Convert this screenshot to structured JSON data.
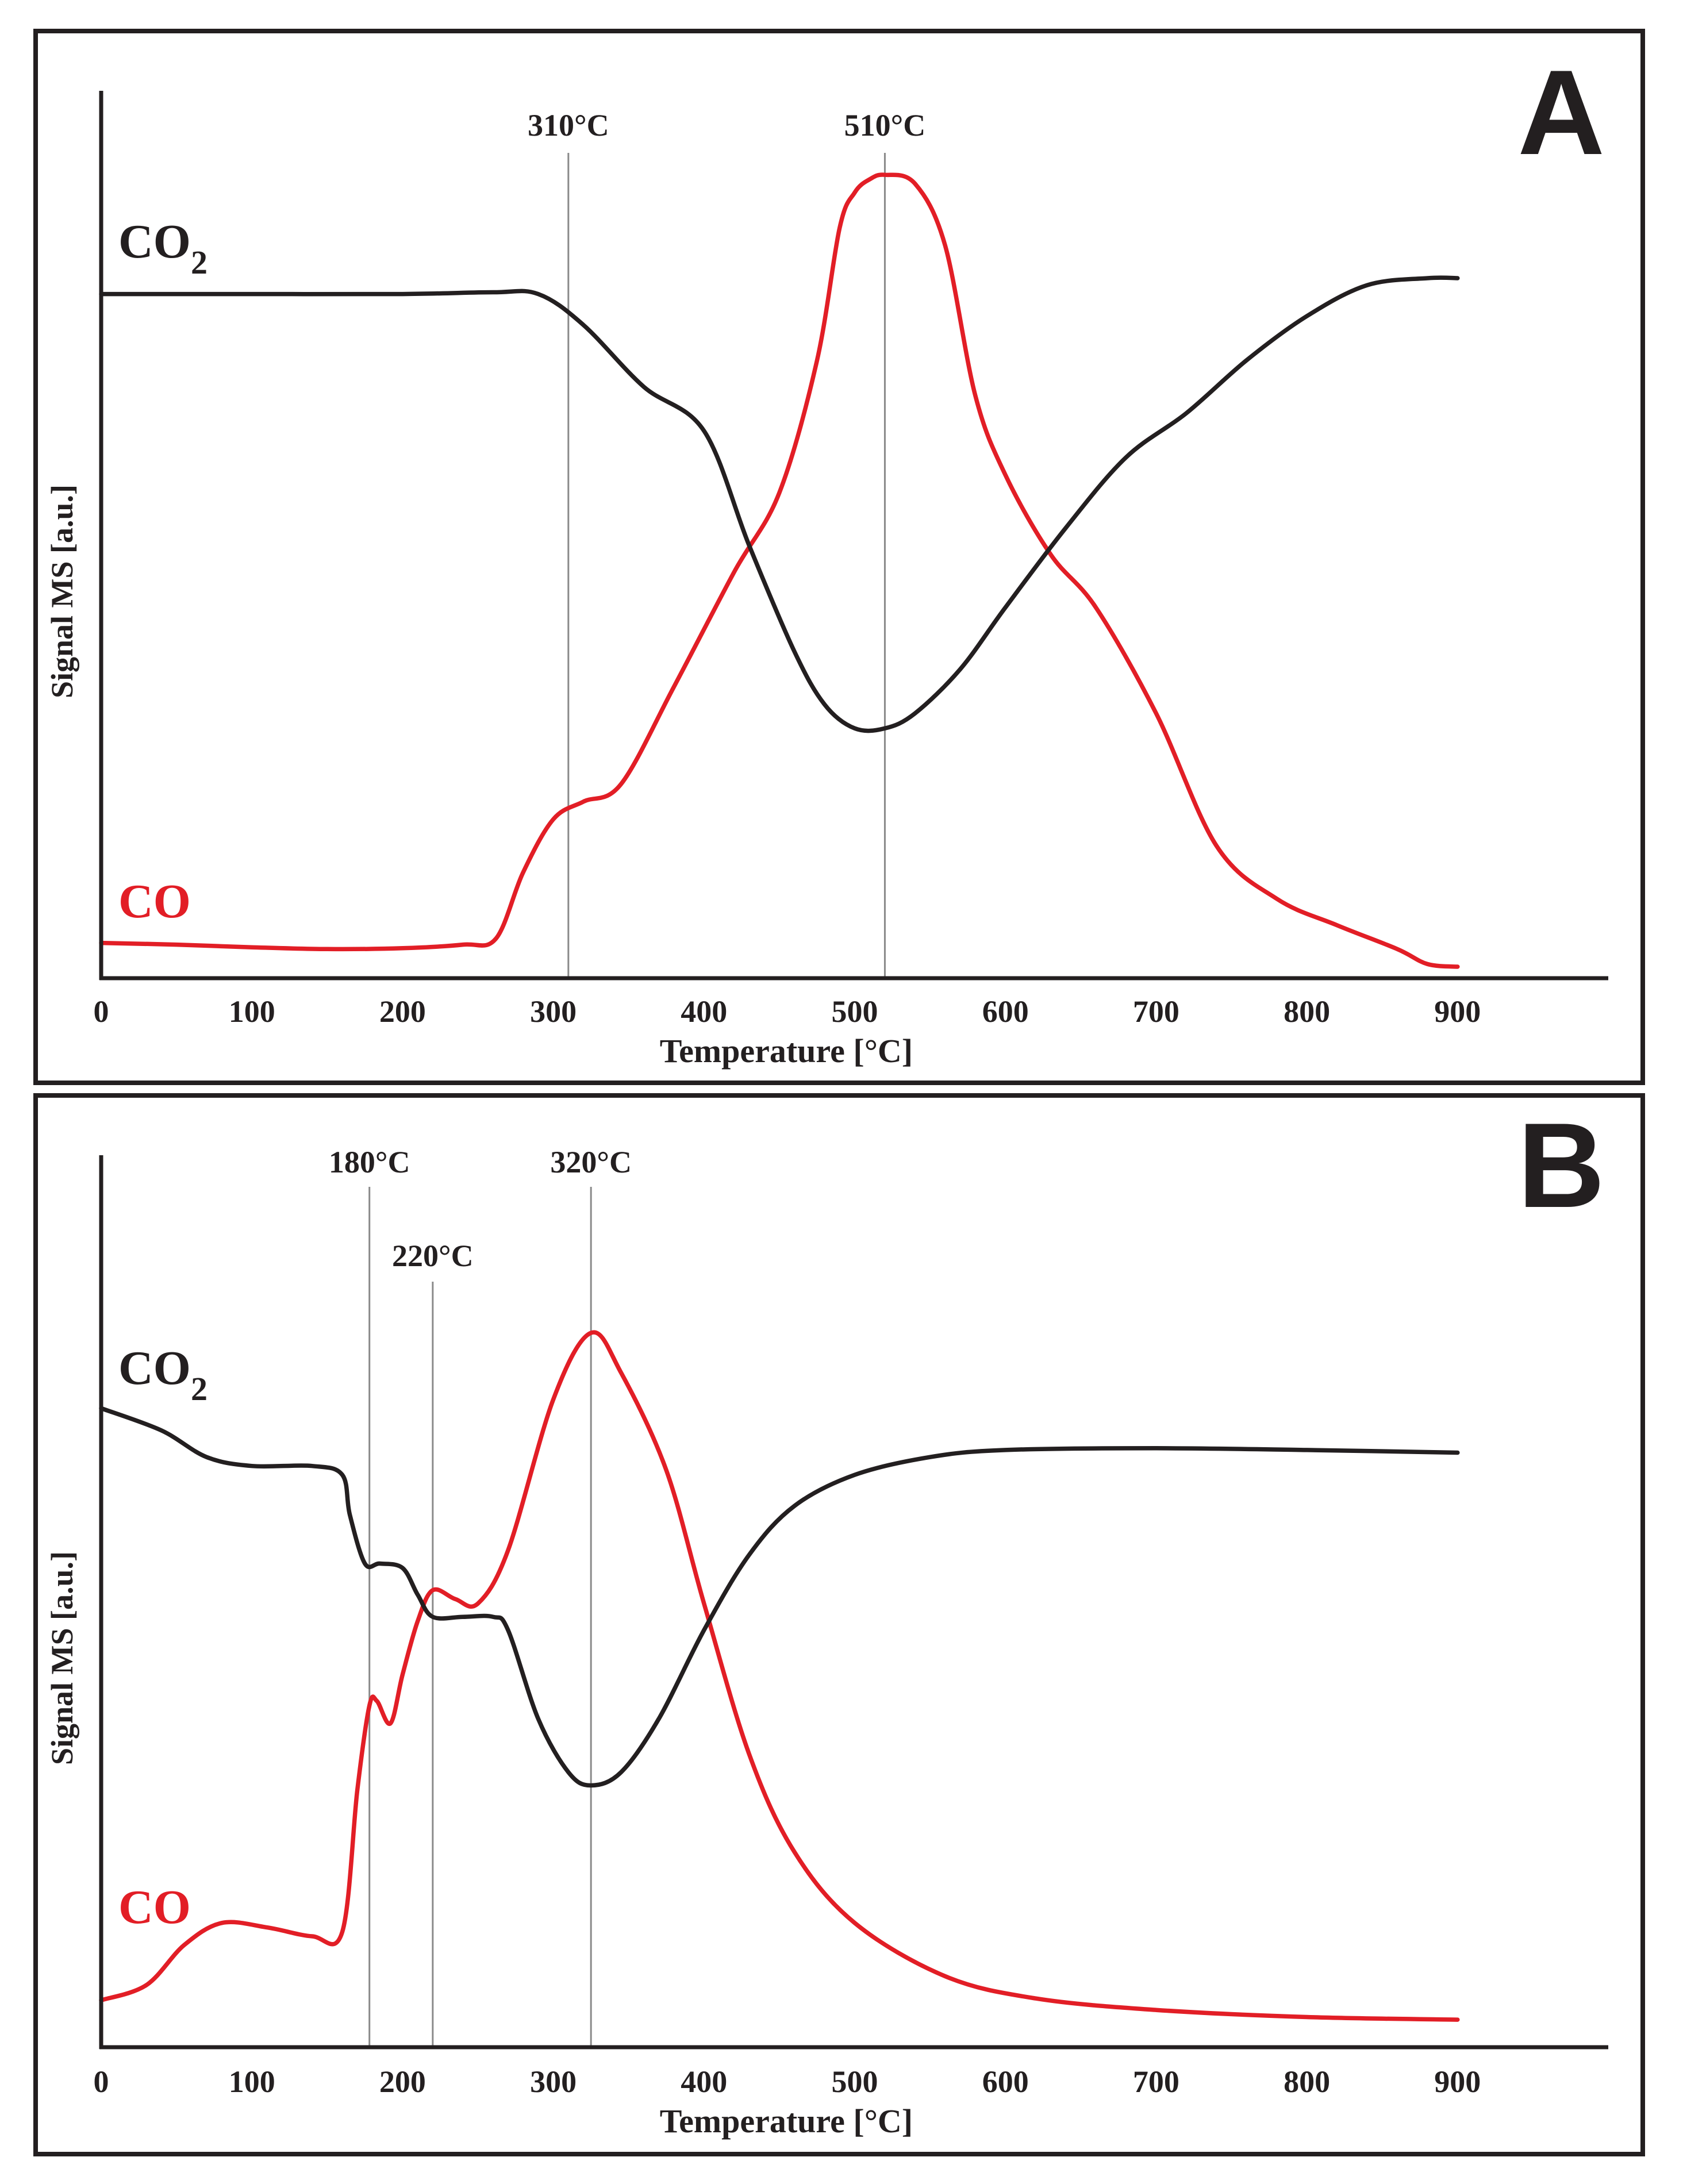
{
  "chart_data": [
    {
      "type": "line",
      "panel_label": "A",
      "xlabel": "Temperature [°C]",
      "ylabel": "Signal MS [a.u.]",
      "x_ticks": [
        "0",
        "100",
        "200",
        "300",
        "400",
        "500",
        "600",
        "700",
        "800",
        "900"
      ],
      "xlim": [
        0,
        1000
      ],
      "ylim": [
        0,
        100
      ],
      "grid": false,
      "legend": "inline labels at left",
      "series": [
        {
          "name": "CO",
          "label_main": "CO",
          "label_sub": "",
          "color": "#e21e26",
          "points": [
            [
              0,
              4.0
            ],
            [
              50,
              3.8
            ],
            [
              100,
              3.5
            ],
            [
              150,
              3.3
            ],
            [
              200,
              3.4
            ],
            [
              240,
              3.8
            ],
            [
              262,
              4.5
            ],
            [
              280,
              12
            ],
            [
              300,
              18
            ],
            [
              320,
              20
            ],
            [
              345,
              22
            ],
            [
              380,
              33
            ],
            [
              420,
              46
            ],
            [
              450,
              55
            ],
            [
              475,
              70
            ],
            [
              490,
              85
            ],
            [
              500,
              89
            ],
            [
              510,
              90.5
            ],
            [
              520,
              91
            ],
            [
              540,
              90
            ],
            [
              560,
              83
            ],
            [
              580,
              66
            ],
            [
              600,
              57
            ],
            [
              630,
              48
            ],
            [
              660,
              42
            ],
            [
              700,
              30
            ],
            [
              740,
              15
            ],
            [
              780,
              9
            ],
            [
              820,
              6
            ],
            [
              860,
              3.3
            ],
            [
              880,
              1.6
            ],
            [
              900,
              1.3
            ]
          ]
        },
        {
          "name": "CO2",
          "label_main": "CO",
          "label_sub": "2",
          "color": "#231f20",
          "points": [
            [
              0,
              77.5
            ],
            [
              100,
              77.5
            ],
            [
              200,
              77.5
            ],
            [
              260,
              77.7
            ],
            [
              290,
              77.5
            ],
            [
              320,
              74
            ],
            [
              360,
              67
            ],
            [
              400,
              62
            ],
            [
              430,
              49
            ],
            [
              460,
              37
            ],
            [
              480,
              31
            ],
            [
              500,
              28.3
            ],
            [
              520,
              28.3
            ],
            [
              540,
              30
            ],
            [
              570,
              35
            ],
            [
              600,
              42
            ],
            [
              640,
              51
            ],
            [
              680,
              59
            ],
            [
              720,
              64
            ],
            [
              760,
              70
            ],
            [
              800,
              75
            ],
            [
              840,
              78.5
            ],
            [
              880,
              79.3
            ],
            [
              900,
              79.3
            ]
          ]
        }
      ],
      "annotations": [
        {
          "x": 310,
          "label": "310°C"
        },
        {
          "x": 520,
          "label": "510°C"
        }
      ]
    },
    {
      "type": "line",
      "panel_label": "B",
      "xlabel": "Temperature [°C]",
      "ylabel": "Signal MS [a.u.]",
      "x_ticks": [
        "0",
        "100",
        "200",
        "300",
        "400",
        "500",
        "600",
        "700",
        "800",
        "900"
      ],
      "xlim": [
        0,
        1000
      ],
      "ylim": [
        0,
        100
      ],
      "grid": false,
      "legend": "inline labels at left",
      "series": [
        {
          "name": "CO",
          "label_main": "CO",
          "label_sub": "",
          "color": "#e21e26",
          "points": [
            [
              0,
              5.3
            ],
            [
              30,
              7
            ],
            [
              55,
              11.5
            ],
            [
              80,
              14
            ],
            [
              110,
              13.5
            ],
            [
              140,
              12.5
            ],
            [
              160,
              13
            ],
            [
              170,
              29
            ],
            [
              178,
              38.5
            ],
            [
              183,
              39
            ],
            [
              192,
              36.5
            ],
            [
              200,
              42
            ],
            [
              210,
              48
            ],
            [
              220,
              51.5
            ],
            [
              235,
              50.5
            ],
            [
              250,
              50
            ],
            [
              270,
              56
            ],
            [
              300,
              73
            ],
            [
              325,
              80.5
            ],
            [
              345,
              76
            ],
            [
              375,
              65
            ],
            [
              400,
              50
            ],
            [
              430,
              33
            ],
            [
              460,
              22
            ],
            [
              500,
              14
            ],
            [
              560,
              8
            ],
            [
              620,
              5.5
            ],
            [
              700,
              4.2
            ],
            [
              800,
              3.4
            ],
            [
              900,
              3.1
            ]
          ]
        },
        {
          "name": "CO2",
          "label_main": "CO",
          "label_sub": "2",
          "color": "#231f20",
          "points": [
            [
              0,
              72
            ],
            [
              40,
              69.5
            ],
            [
              70,
              66.5
            ],
            [
              100,
              65.5
            ],
            [
              140,
              65.5
            ],
            [
              160,
              64.5
            ],
            [
              165,
              60
            ],
            [
              175,
              54.5
            ],
            [
              185,
              54.5
            ],
            [
              200,
              54
            ],
            [
              210,
              51
            ],
            [
              220,
              48.5
            ],
            [
              240,
              48.5
            ],
            [
              260,
              48.5
            ],
            [
              270,
              47
            ],
            [
              290,
              37
            ],
            [
              310,
              31
            ],
            [
              325,
              29.5
            ],
            [
              345,
              31
            ],
            [
              370,
              37
            ],
            [
              400,
              47
            ],
            [
              430,
              55.5
            ],
            [
              460,
              61
            ],
            [
              500,
              64.5
            ],
            [
              550,
              66.5
            ],
            [
              600,
              67.3
            ],
            [
              700,
              67.5
            ],
            [
              800,
              67.3
            ],
            [
              900,
              67
            ]
          ]
        }
      ],
      "annotations": [
        {
          "x": 178,
          "label": "180°C"
        },
        {
          "x": 220,
          "label": "220°C"
        },
        {
          "x": 325,
          "label": "320°C"
        }
      ]
    }
  ]
}
